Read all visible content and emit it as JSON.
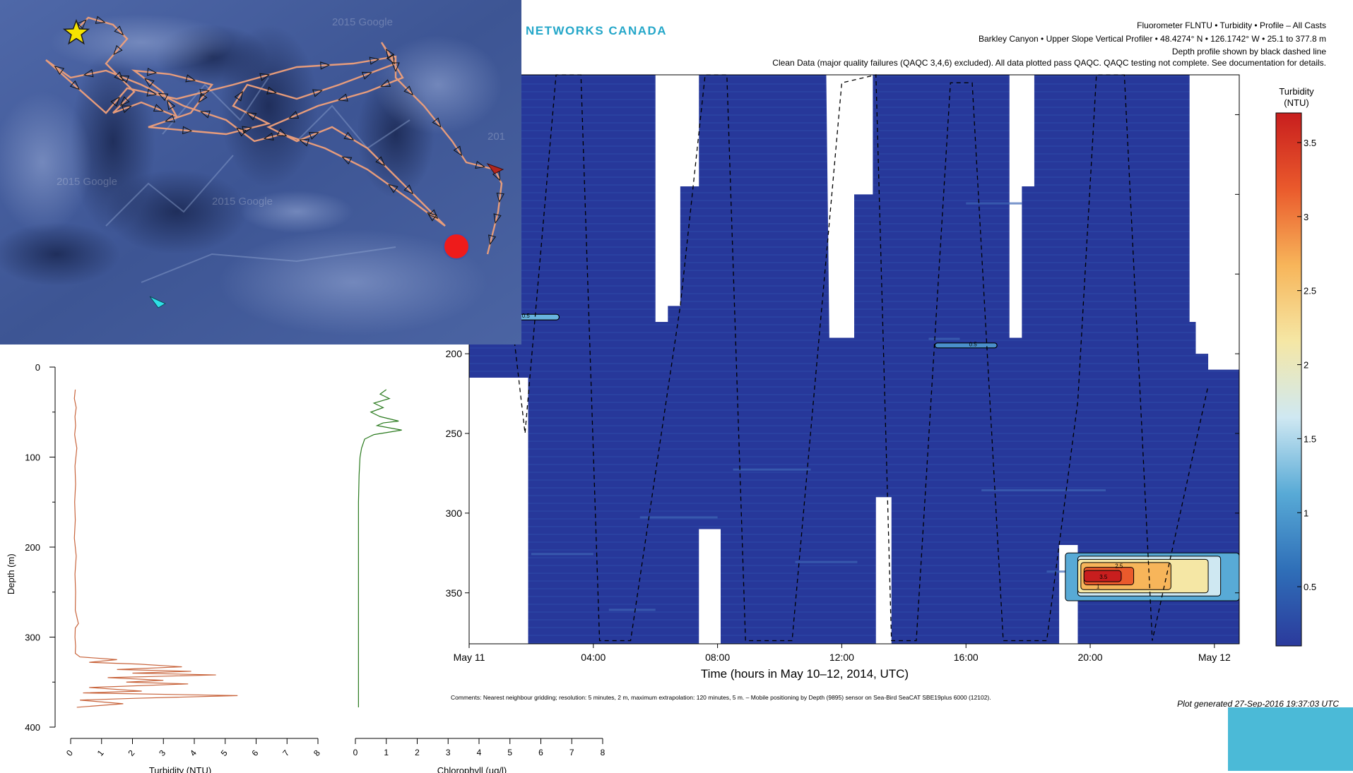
{
  "header": {
    "brand": "NETWORKS CANADA",
    "line1": "Fluorometer FLNTU • Turbidity • Profile – All Casts",
    "line2": "Barkley Canyon • Upper Slope Vertical Profiler • 48.4274° N • 126.1742° W • 25.1 to 377.8 m",
    "line3": "Depth profile shown by black dashed line",
    "line4": "Clean Data (major quality failures (QAQC 3,4,6) excluded). All data plotted pass QAQC. QAQC testing not complete. See documentation for details."
  },
  "footnote": "Comments: Nearest neighbour gridding; resolution: 5 minutes, 2 m, maximum extrapolation: 120 minutes, 5 m. – Mobile positioning by Depth (9895) sensor on Sea-Bird SeaCAT SBE19plus 6000 (12102).",
  "generated": "Plot generated 27-Sep-2016 19:37:03 UTC",
  "map": {
    "start_marker": "star-icon",
    "end_marker": "red-circle-icon",
    "watermarks": [
      "2015 Google",
      "2015 Google",
      "2015 Google",
      "201"
    ]
  },
  "chart_data": [
    {
      "type": "heatmap",
      "xlabel": "Time (hours in May 10–12, 2014, UTC)",
      "ylabel": "Depth (m)",
      "x_ticks": [
        "May 11",
        "04:00",
        "08:00",
        "12:00",
        "16:00",
        "20:00",
        "May 12"
      ],
      "y_ticks": [
        200,
        250,
        300,
        350
      ],
      "xlim_hours": [
        0,
        24.8
      ],
      "ylim": [
        382,
        25
      ],
      "colorbar": {
        "title": "Turbidity (NTU)",
        "ticks": [
          0.5,
          1,
          1.5,
          2,
          2.5,
          3,
          3.5
        ],
        "range": [
          0.1,
          3.7
        ],
        "colors": [
          "#2b3a9c",
          "#2f6fb8",
          "#58aad6",
          "#cfe8f2",
          "#f5e7a5",
          "#f7b55a",
          "#ea5a2c",
          "#c81e1e"
        ]
      },
      "background_value_ntu": 0.15,
      "contour_labels": [
        "0.5",
        "0.5",
        "3.5",
        "2.5",
        "1"
      ],
      "depth_profile_x_hours": [
        0,
        0.5,
        1.8,
        2.8,
        3.6,
        4.2,
        5.2,
        6.8,
        7.6,
        8.3,
        8.9,
        9.7,
        10.4,
        12.0,
        13.1,
        13.6,
        14.4,
        15.5,
        16.2,
        17.2,
        18.6,
        19.6,
        20.2,
        21.1,
        22.0,
        23.8
      ],
      "depth_profile_y_m": [
        70,
        30,
        250,
        25,
        25,
        380,
        380,
        170,
        25,
        25,
        380,
        380,
        380,
        30,
        25,
        380,
        380,
        30,
        30,
        380,
        380,
        230,
        25,
        25,
        380,
        220
      ]
    },
    {
      "type": "line",
      "xlabel": "Turbidity (NTU)",
      "ylabel": "Depth (m)",
      "x_ticks": [
        0,
        1,
        2,
        3,
        4,
        5,
        6,
        7,
        8
      ],
      "y_ticks": [
        0,
        100,
        200,
        300,
        400
      ],
      "xlim": [
        0,
        8
      ],
      "ylim": [
        400,
        0
      ],
      "color": "#c8643c",
      "series": [
        {
          "x": [
            0.15,
            0.12,
            0.18,
            0.14,
            0.16,
            0.13,
            0.15,
            0.2,
            0.14,
            0.16,
            0.13,
            0.15,
            0.12,
            0.18,
            0.14,
            0.16,
            0.15,
            0.25,
            0.15,
            0.14,
            0.16,
            0.15,
            0.3,
            1.5,
            0.6,
            2.2,
            3.6,
            1.5,
            3.9,
            2.0,
            4.7,
            1.2,
            3.0,
            1.8,
            3.8,
            0.6,
            2.3,
            0.4,
            5.4,
            2.1,
            0.3,
            1.7,
            0.2
          ],
          "y": [
            25,
            35,
            45,
            55,
            65,
            75,
            80,
            90,
            110,
            130,
            150,
            170,
            190,
            210,
            230,
            250,
            270,
            285,
            290,
            300,
            310,
            318,
            322,
            325,
            328,
            330,
            333,
            336,
            338,
            340,
            342,
            345,
            348,
            350,
            352,
            356,
            360,
            362,
            365,
            368,
            370,
            374,
            378
          ]
        }
      ]
    },
    {
      "type": "line",
      "xlabel": "Chlorophyll (µg/l)",
      "ylabel": "",
      "x_ticks": [
        0,
        1,
        2,
        3,
        4,
        5,
        6,
        7,
        8
      ],
      "xlim": [
        0,
        8
      ],
      "ylim": [
        400,
        0
      ],
      "color": "#2a7a1e",
      "series": [
        {
          "x": [
            1.0,
            0.8,
            1.1,
            0.6,
            0.9,
            0.5,
            0.8,
            1.4,
            0.9,
            0.7,
            1.5,
            0.6,
            0.3,
            0.2,
            0.15,
            0.12,
            0.1,
            0.1,
            0.1,
            0.1,
            0.1,
            0.1,
            0.1,
            0.1,
            0.1
          ],
          "y": [
            25,
            30,
            35,
            40,
            45,
            50,
            55,
            60,
            62,
            65,
            70,
            75,
            80,
            90,
            100,
            120,
            150,
            180,
            220,
            260,
            300,
            330,
            360,
            370,
            378
          ]
        }
      ]
    }
  ]
}
